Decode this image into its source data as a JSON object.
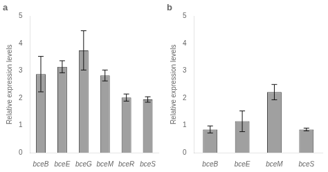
{
  "chart_data": [
    {
      "type": "bar",
      "title": "a",
      "categories": [
        "bceB",
        "bceE",
        "bceG",
        "bceM",
        "bceR",
        "bceS"
      ],
      "values": [
        2.88,
        3.15,
        3.75,
        2.83,
        2.02,
        1.95
      ],
      "errors": [
        0.65,
        0.22,
        0.72,
        0.2,
        0.13,
        0.1
      ],
      "ylabel": "Relative expression levels",
      "color": "#a0a0a0",
      "ylim": [
        0,
        5
      ],
      "yticks": [
        0,
        1,
        2,
        3,
        4,
        5
      ],
      "grid": false
    },
    {
      "type": "bar",
      "title": "b",
      "categories": [
        "bceB",
        "bceE",
        "bceM",
        "bceS"
      ],
      "values": [
        0.85,
        1.15,
        2.22,
        0.85
      ],
      "errors": [
        0.13,
        0.38,
        0.28,
        0.05
      ],
      "ylabel": "Relative expression levels",
      "color": "#a0a0a0",
      "ylim": [
        0,
        5
      ],
      "yticks": [
        0,
        1,
        2,
        3,
        4,
        5
      ],
      "grid": false
    }
  ]
}
